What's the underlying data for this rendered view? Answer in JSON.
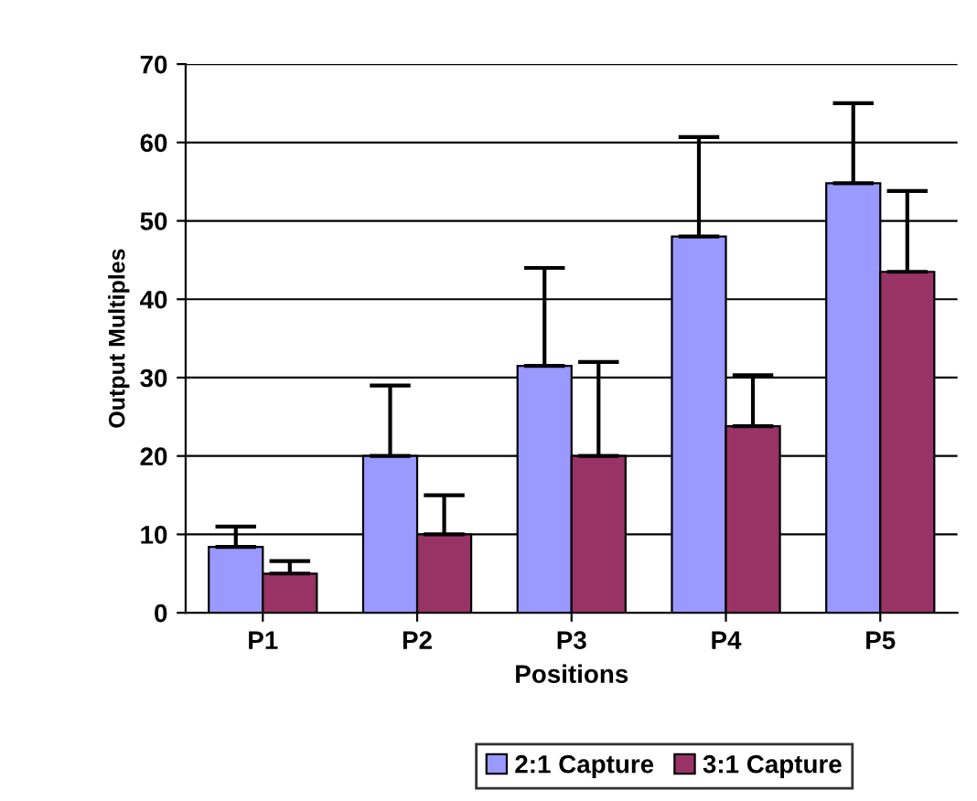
{
  "chart_data": {
    "type": "bar",
    "xlabel": "Positions",
    "ylabel": "Output Multiples",
    "categories": [
      "P1",
      "P2",
      "P3",
      "P4",
      "P5"
    ],
    "series": [
      {
        "name": "2:1 Capture",
        "color": "#9999ff",
        "values": [
          8.4,
          20,
          31.5,
          48,
          54.8
        ],
        "errors": [
          [
            8.4,
            11
          ],
          [
            20,
            29
          ],
          [
            31.5,
            44
          ],
          [
            48,
            60.7
          ],
          [
            54.8,
            65
          ]
        ]
      },
      {
        "name": "3:1 Capture",
        "color": "#993366",
        "values": [
          5,
          10,
          20,
          23.8,
          43.5
        ],
        "errors": [
          [
            5,
            6.6
          ],
          [
            10,
            15
          ],
          [
            20,
            32
          ],
          [
            23.8,
            30.3
          ],
          [
            43.5,
            53.8
          ]
        ]
      }
    ],
    "ylim": [
      0,
      70
    ],
    "yticks": [
      0,
      10,
      20,
      30,
      40,
      50,
      60,
      70
    ],
    "grid": "y",
    "legend": "bottom"
  }
}
